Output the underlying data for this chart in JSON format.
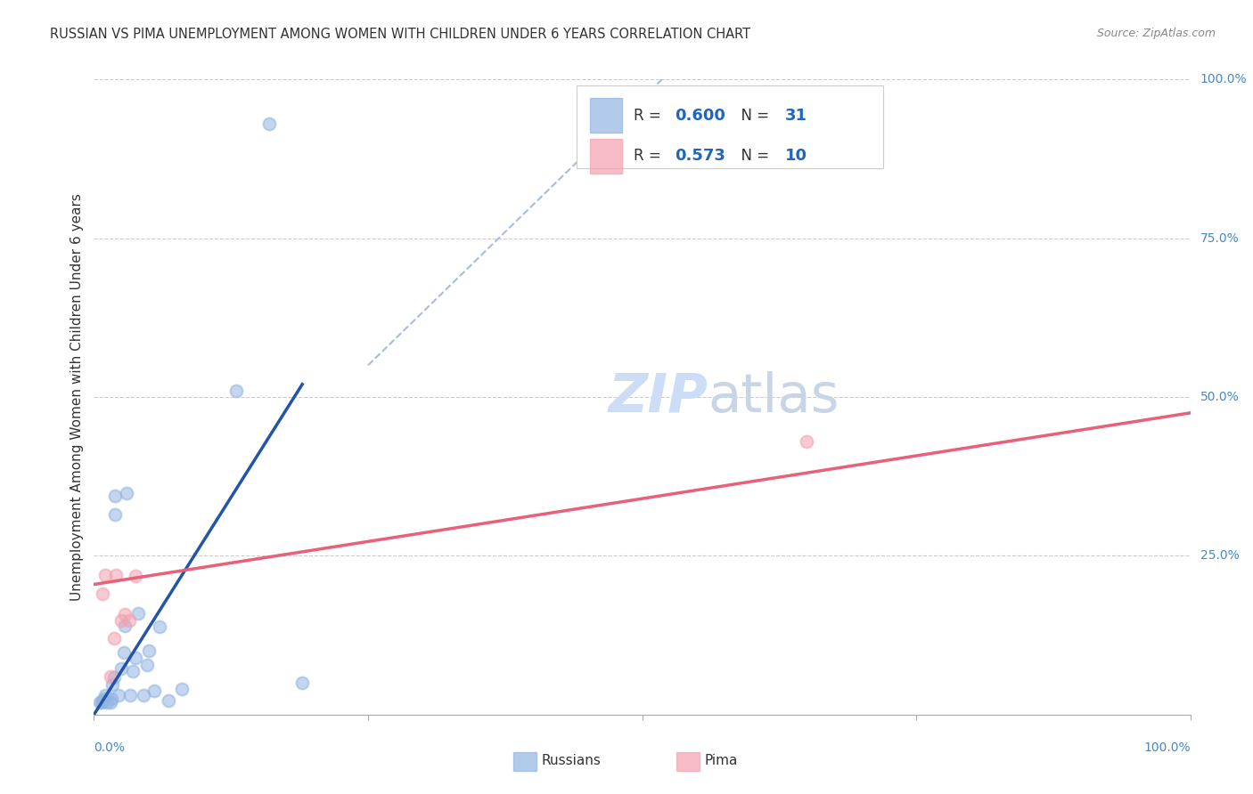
{
  "title": "RUSSIAN VS PIMA UNEMPLOYMENT AMONG WOMEN WITH CHILDREN UNDER 6 YEARS CORRELATION CHART",
  "source": "Source: ZipAtlas.com",
  "ylabel": "Unemployment Among Women with Children Under 6 years",
  "background_color": "#ffffff",
  "russian_color": "#92b4e3",
  "pima_color": "#f4a0b0",
  "russian_line_color": "#2255aa",
  "pima_line_color": "#e8607a",
  "dashed_line_color": "#aabbdd",
  "russian_scatter_x": [
    0.005,
    0.007,
    0.008,
    0.009,
    0.01,
    0.012,
    0.015,
    0.016,
    0.017,
    0.018,
    0.019,
    0.019,
    0.022,
    0.025,
    0.027,
    0.028,
    0.03,
    0.033,
    0.035,
    0.038,
    0.04,
    0.045,
    0.048,
    0.05,
    0.055,
    0.06,
    0.068,
    0.08,
    0.13,
    0.16,
    0.19
  ],
  "russian_scatter_y": [
    0.02,
    0.02,
    0.022,
    0.025,
    0.03,
    0.02,
    0.02,
    0.025,
    0.048,
    0.058,
    0.315,
    0.345,
    0.03,
    0.072,
    0.098,
    0.14,
    0.348,
    0.03,
    0.068,
    0.09,
    0.16,
    0.03,
    0.078,
    0.1,
    0.038,
    0.138,
    0.022,
    0.04,
    0.51,
    0.93,
    0.05
  ],
  "pima_scatter_x": [
    0.008,
    0.01,
    0.015,
    0.018,
    0.02,
    0.025,
    0.028,
    0.032,
    0.038,
    0.65
  ],
  "pima_scatter_y": [
    0.19,
    0.22,
    0.06,
    0.12,
    0.22,
    0.148,
    0.158,
    0.148,
    0.218,
    0.43
  ],
  "russian_trend_x": [
    0.0,
    0.19
  ],
  "russian_trend_y": [
    0.0,
    0.52
  ],
  "pima_trend_x": [
    0.0,
    1.0
  ],
  "pima_trend_y": [
    0.205,
    0.475
  ],
  "dashed_trend_x": [
    0.25,
    0.53
  ],
  "dashed_trend_y": [
    0.55,
    1.02
  ],
  "russian_r": "0.600",
  "russian_n": "31",
  "pima_r": "0.573",
  "pima_n": "10",
  "xlim": [
    0.0,
    1.0
  ],
  "ylim": [
    0.0,
    1.0
  ],
  "scatter_size": 100,
  "label_color": "#4488cc",
  "text_color": "#333333",
  "grid_color": "#cccccc",
  "value_color": "#2266bb"
}
